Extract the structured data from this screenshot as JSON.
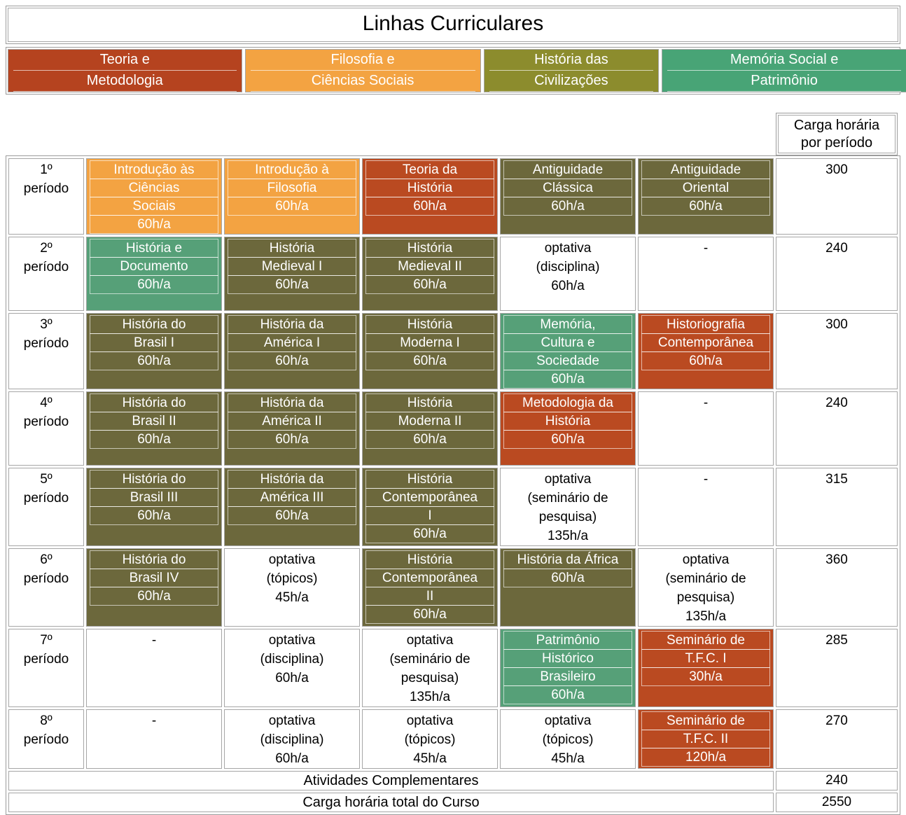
{
  "title": "Linhas Curriculares",
  "colors": {
    "border_gray": "#9b9b9b",
    "legend_red": "#b5431f",
    "legend_orange": "#f3a342",
    "legend_olive": "#8c8c2d",
    "legend_green": "#48a476",
    "cell_red": "#ba4a21",
    "cell_orange": "#f3a342",
    "cell_olive": "#6c683c",
    "cell_green": "#56a078",
    "inner_line": "rgba(255,255,255,0.62)"
  },
  "legend": [
    {
      "lines": [
        "Teoria e",
        "Metodologia"
      ],
      "color": "#b5431f",
      "basis": "26.3%"
    },
    {
      "lines": [
        "Filosofia e",
        "Ciências Sociais"
      ],
      "color": "#f3a342",
      "basis": "26.5%"
    },
    {
      "lines": [
        "História das",
        "Civilizações"
      ],
      "color": "#8c8c2d",
      "basis": "19.7%"
    },
    {
      "lines": [
        "Memória Social e",
        "Patrimônio"
      ],
      "color": "#48a476",
      "basis": "27.5%"
    }
  ],
  "carga_header": {
    "line1": "Carga horária",
    "line2": "por período"
  },
  "rows": [
    {
      "period_num": "1º",
      "period_word": "período",
      "total": "300",
      "cells": [
        {
          "style": "orange",
          "lines": [
            "Introdução às",
            "Ciências",
            "Sociais",
            "60h/a"
          ]
        },
        {
          "style": "orange",
          "lines": [
            "Introdução à",
            "Filosofia",
            "60h/a"
          ]
        },
        {
          "style": "red",
          "lines": [
            "Teoria da",
            "História",
            "60h/a"
          ]
        },
        {
          "style": "olive",
          "lines": [
            "Antiguidade",
            "Clássica",
            "60h/a"
          ]
        },
        {
          "style": "olive",
          "lines": [
            "Antiguidade",
            "Oriental",
            "60h/a"
          ]
        }
      ]
    },
    {
      "period_num": "2º",
      "period_word": "período",
      "total": "240",
      "cells": [
        {
          "style": "green",
          "lines": [
            "História e",
            "Documento",
            "60h/a"
          ]
        },
        {
          "style": "olive",
          "lines": [
            "História",
            "Medieval I",
            "60h/a"
          ]
        },
        {
          "style": "olive",
          "lines": [
            "História",
            "Medieval II",
            "60h/a"
          ]
        },
        {
          "style": "plain",
          "lines": [
            "optativa",
            "(disciplina)",
            "60h/a"
          ]
        },
        {
          "style": "plain",
          "lines": [
            "-"
          ]
        }
      ]
    },
    {
      "period_num": "3º",
      "period_word": "período",
      "total": "300",
      "cells": [
        {
          "style": "olive",
          "lines": [
            "História do",
            "Brasil I",
            "60h/a"
          ]
        },
        {
          "style": "olive",
          "lines": [
            "História da",
            "América I",
            "60h/a"
          ]
        },
        {
          "style": "olive",
          "lines": [
            "História",
            "Moderna I",
            "60h/a"
          ]
        },
        {
          "style": "green",
          "lines": [
            "Memória,",
            "Cultura e",
            "Sociedade",
            "60h/a"
          ]
        },
        {
          "style": "red",
          "lines": [
            "Historiografia",
            "Contemporânea",
            "60h/a"
          ]
        }
      ]
    },
    {
      "period_num": "4º",
      "period_word": "período",
      "total": "240",
      "cells": [
        {
          "style": "olive",
          "lines": [
            "História do",
            "Brasil II",
            "60h/a"
          ]
        },
        {
          "style": "olive",
          "lines": [
            "História da",
            "América II",
            "60h/a"
          ]
        },
        {
          "style": "olive",
          "lines": [
            "História",
            "Moderna II",
            "60h/a"
          ]
        },
        {
          "style": "red",
          "lines": [
            "Metodologia da",
            "História",
            "60h/a"
          ]
        },
        {
          "style": "plain",
          "lines": [
            "-"
          ]
        }
      ]
    },
    {
      "period_num": "5º",
      "period_word": "período",
      "total": "315",
      "cells": [
        {
          "style": "olive",
          "lines": [
            "História do",
            "Brasil III",
            "60h/a"
          ]
        },
        {
          "style": "olive",
          "lines": [
            "História da",
            "América III",
            "60h/a"
          ]
        },
        {
          "style": "olive",
          "lines": [
            "História",
            "Contemporânea",
            "I",
            "60h/a"
          ]
        },
        {
          "style": "plain",
          "lines": [
            "optativa",
            "(seminário de",
            "pesquisa)",
            "135h/a"
          ]
        },
        {
          "style": "plain",
          "lines": [
            "-"
          ]
        }
      ]
    },
    {
      "period_num": "6º",
      "period_word": "período",
      "total": "360",
      "cells": [
        {
          "style": "olive",
          "lines": [
            "História do",
            "Brasil IV",
            "60h/a"
          ]
        },
        {
          "style": "plain",
          "lines": [
            "optativa",
            "(tópicos)",
            "45h/a"
          ]
        },
        {
          "style": "olive",
          "lines": [
            "História",
            "Contemporânea",
            "II",
            "60h/a"
          ]
        },
        {
          "style": "olive",
          "lines": [
            "História da África",
            "60h/a"
          ]
        },
        {
          "style": "plain",
          "lines": [
            "optativa",
            "(seminário de",
            "pesquisa)",
            "135h/a"
          ]
        }
      ]
    },
    {
      "period_num": "7º",
      "period_word": "período",
      "total": "285",
      "cells": [
        {
          "style": "plain",
          "lines": [
            "-"
          ]
        },
        {
          "style": "plain",
          "lines": [
            "optativa",
            "(disciplina)",
            "60h/a"
          ]
        },
        {
          "style": "plain",
          "lines": [
            "optativa",
            "(seminário de",
            "pesquisa)",
            "135h/a"
          ]
        },
        {
          "style": "green",
          "lines": [
            "Patrimônio",
            "Histórico",
            "Brasileiro",
            "60h/a"
          ]
        },
        {
          "style": "red",
          "lines": [
            "Seminário de",
            "T.F.C. I",
            "30h/a"
          ]
        }
      ]
    },
    {
      "period_num": "8º",
      "period_word": "período",
      "total": "270",
      "short": true,
      "cells": [
        {
          "style": "plain",
          "lines": [
            "-"
          ]
        },
        {
          "style": "plain",
          "lines": [
            "optativa",
            "(disciplina)",
            "60h/a"
          ]
        },
        {
          "style": "plain",
          "lines": [
            "optativa",
            "(tópicos)",
            "45h/a"
          ]
        },
        {
          "style": "plain",
          "lines": [
            "optativa",
            "(tópicos)",
            "45h/a"
          ]
        },
        {
          "style": "red",
          "lines": [
            "Seminário de",
            "T.F.C. II",
            "120h/a"
          ]
        }
      ]
    }
  ],
  "footer": {
    "complementares_label": "Atividades Complementares",
    "complementares_value": "240",
    "total_label": "Carga horária total do Curso",
    "total_value": "2550"
  }
}
